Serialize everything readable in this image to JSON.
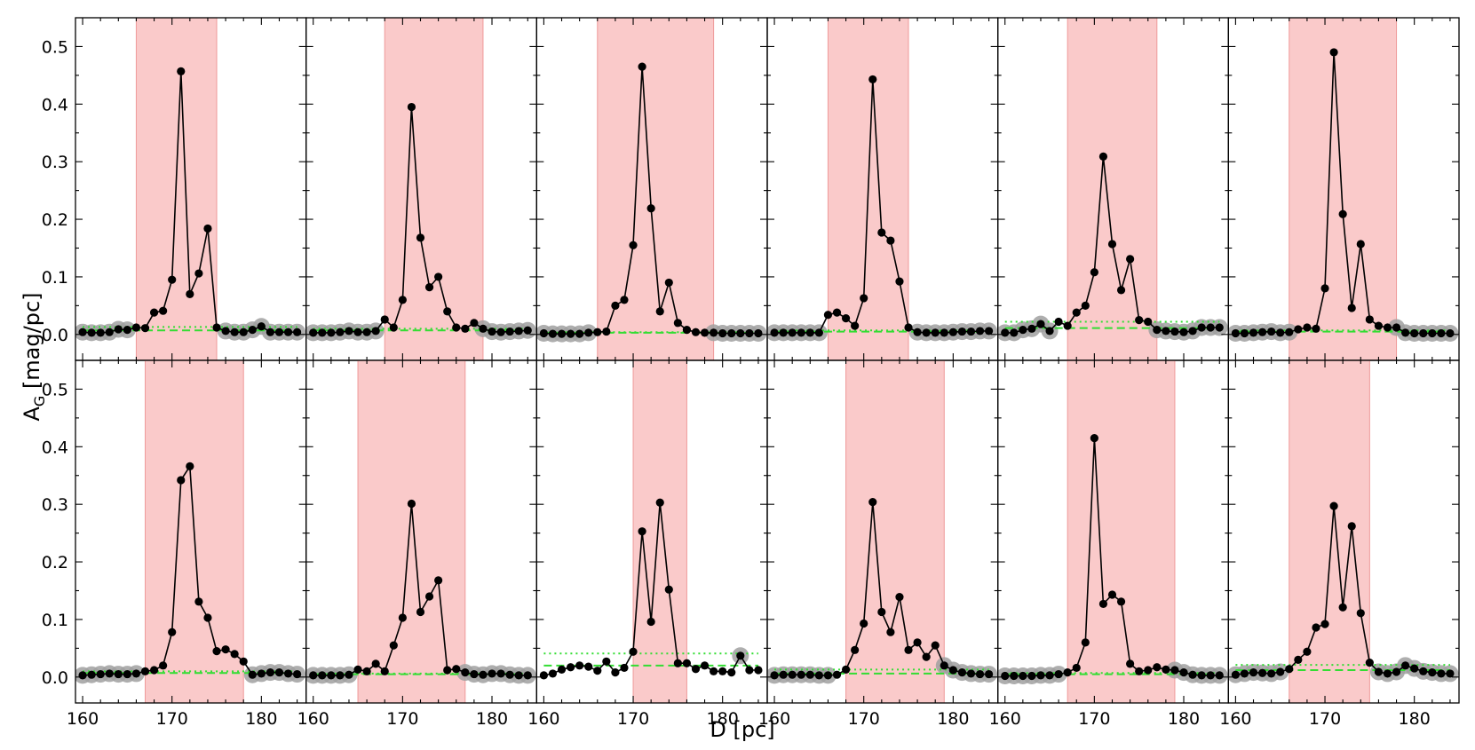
{
  "figure": {
    "xlabel": "D [pc]",
    "ylabel_main": "A",
    "ylabel_sub": "G",
    "ylabel_unit": " [mag/pc]"
  },
  "chart_data": {
    "type": "line",
    "layout": "2 rows x 6 columns, shared axes",
    "xlim": [
      159.2,
      185.0
    ],
    "ylim": [
      -0.045,
      0.55
    ],
    "xticks": [
      "160",
      "170",
      "180"
    ],
    "yticks": [
      "0.0",
      "0.1",
      "0.2",
      "0.3",
      "0.4",
      "0.5"
    ],
    "colors": {
      "band": "#f8b3b3",
      "line": "#000000",
      "marker": "#000000",
      "halo": "#a0a0a0",
      "fit_dashed": "#33dd33",
      "fit_dotted": "#33dd33"
    },
    "panels": [
      {
        "band": [
          166.0,
          175.0
        ],
        "dashed_y": 0.007,
        "dotted_y": 0.013,
        "x": [
          160,
          161,
          162,
          163,
          164,
          165,
          166,
          167,
          168,
          169,
          170,
          171,
          172,
          173,
          174,
          175,
          176,
          177,
          178,
          179,
          180,
          181,
          182,
          183,
          184
        ],
        "y": [
          0.004,
          0.003,
          0.003,
          0.004,
          0.009,
          0.008,
          0.012,
          0.011,
          0.038,
          0.041,
          0.095,
          0.457,
          0.07,
          0.106,
          0.184,
          0.012,
          0.006,
          0.004,
          0.004,
          0.008,
          0.014,
          0.004,
          0.004,
          0.004,
          0.004
        ],
        "halo": [
          1,
          1,
          1,
          1,
          1,
          1,
          0,
          0,
          0,
          0,
          0,
          0,
          0,
          0,
          0,
          0,
          1,
          1,
          1,
          1,
          1,
          1,
          1,
          1,
          1
        ]
      },
      {
        "band": [
          168.0,
          179.0
        ],
        "dashed_y": 0.007,
        "dotted_y": 0.01,
        "x": [
          160,
          161,
          162,
          163,
          164,
          165,
          166,
          167,
          168,
          169,
          170,
          171,
          172,
          173,
          174,
          175,
          176,
          177,
          178,
          179,
          180,
          181,
          182,
          183,
          184
        ],
        "y": [
          0.003,
          0.003,
          0.003,
          0.004,
          0.006,
          0.004,
          0.004,
          0.006,
          0.026,
          0.012,
          0.06,
          0.395,
          0.168,
          0.082,
          0.1,
          0.04,
          0.012,
          0.01,
          0.02,
          0.01,
          0.005,
          0.004,
          0.005,
          0.006,
          0.007
        ],
        "halo": [
          1,
          1,
          1,
          1,
          1,
          1,
          1,
          1,
          0,
          0,
          0,
          0,
          0,
          0,
          0,
          0,
          0,
          0,
          0,
          1,
          1,
          1,
          1,
          1,
          1
        ]
      },
      {
        "band": [
          166.0,
          179.0
        ],
        "dashed_y": 0.003,
        "dotted_y": 0.004,
        "x": [
          160,
          161,
          162,
          163,
          164,
          165,
          166,
          167,
          168,
          169,
          170,
          171,
          172,
          173,
          174,
          175,
          176,
          177,
          178,
          179,
          180,
          181,
          182,
          183,
          184
        ],
        "y": [
          0.002,
          0.001,
          0.001,
          0.001,
          0.001,
          0.003,
          0.004,
          0.005,
          0.05,
          0.06,
          0.155,
          0.465,
          0.219,
          0.04,
          0.09,
          0.02,
          0.008,
          0.004,
          0.003,
          0.003,
          0.002,
          0.002,
          0.002,
          0.002,
          0.002
        ],
        "halo": [
          1,
          1,
          1,
          1,
          1,
          1,
          0,
          0,
          0,
          0,
          0,
          0,
          0,
          0,
          0,
          0,
          0,
          0,
          0,
          1,
          1,
          1,
          1,
          1,
          1
        ]
      },
      {
        "band": [
          166.0,
          175.0
        ],
        "dashed_y": 0.005,
        "dotted_y": 0.007,
        "x": [
          160,
          161,
          162,
          163,
          164,
          165,
          166,
          167,
          168,
          169,
          170,
          171,
          172,
          173,
          174,
          175,
          176,
          177,
          178,
          179,
          180,
          181,
          182,
          183,
          184
        ],
        "y": [
          0.003,
          0.003,
          0.003,
          0.003,
          0.003,
          0.003,
          0.034,
          0.038,
          0.028,
          0.015,
          0.063,
          0.443,
          0.177,
          0.163,
          0.092,
          0.012,
          0.004,
          0.003,
          0.003,
          0.003,
          0.004,
          0.005,
          0.005,
          0.006,
          0.006
        ],
        "halo": [
          1,
          1,
          1,
          1,
          1,
          1,
          0,
          0,
          0,
          0,
          0,
          0,
          0,
          0,
          0,
          0,
          1,
          1,
          1,
          1,
          1,
          1,
          1,
          1,
          1
        ]
      },
      {
        "band": [
          167.0,
          177.0
        ],
        "dashed_y": 0.011,
        "dotted_y": 0.022,
        "x": [
          160,
          161,
          162,
          163,
          164,
          165,
          166,
          167,
          168,
          169,
          170,
          171,
          172,
          173,
          174,
          175,
          176,
          177,
          178,
          179,
          180,
          181,
          182,
          183,
          184
        ],
        "y": [
          0.003,
          0.003,
          0.008,
          0.01,
          0.018,
          0.006,
          0.022,
          0.015,
          0.038,
          0.05,
          0.108,
          0.309,
          0.157,
          0.077,
          0.131,
          0.025,
          0.022,
          0.008,
          0.006,
          0.005,
          0.004,
          0.006,
          0.012,
          0.012,
          0.012
        ],
        "halo": [
          1,
          1,
          1,
          1,
          1,
          1,
          0,
          0,
          0,
          0,
          0,
          0,
          0,
          0,
          0,
          0,
          0,
          1,
          1,
          1,
          1,
          1,
          1,
          1,
          1
        ]
      },
      {
        "band": [
          166.0,
          178.0
        ],
        "dashed_y": 0.005,
        "dotted_y": 0.007,
        "x": [
          160,
          161,
          162,
          163,
          164,
          165,
          166,
          167,
          168,
          169,
          170,
          171,
          172,
          173,
          174,
          175,
          176,
          177,
          178,
          179,
          180,
          181,
          182,
          183,
          184
        ],
        "y": [
          0.002,
          0.002,
          0.003,
          0.004,
          0.005,
          0.003,
          0.004,
          0.009,
          0.012,
          0.01,
          0.08,
          0.49,
          0.209,
          0.046,
          0.157,
          0.026,
          0.015,
          0.012,
          0.012,
          0.003,
          0.002,
          0.002,
          0.002,
          0.002,
          0.002
        ],
        "halo": [
          1,
          1,
          1,
          1,
          1,
          1,
          1,
          0,
          0,
          0,
          0,
          0,
          0,
          0,
          0,
          0,
          0,
          0,
          1,
          1,
          1,
          1,
          1,
          1,
          1
        ]
      },
      {
        "band": [
          167.0,
          178.0
        ],
        "dashed_y": 0.007,
        "dotted_y": 0.01,
        "x": [
          160,
          161,
          162,
          163,
          164,
          165,
          166,
          167,
          168,
          169,
          170,
          171,
          172,
          173,
          174,
          175,
          176,
          177,
          178,
          179,
          180,
          181,
          182,
          183,
          184
        ],
        "y": [
          0.003,
          0.004,
          0.005,
          0.006,
          0.005,
          0.005,
          0.006,
          0.01,
          0.012,
          0.02,
          0.078,
          0.342,
          0.366,
          0.131,
          0.103,
          0.045,
          0.048,
          0.04,
          0.027,
          0.004,
          0.006,
          0.008,
          0.008,
          0.006,
          0.005
        ],
        "halo": [
          1,
          1,
          1,
          1,
          1,
          1,
          1,
          0,
          0,
          0,
          0,
          0,
          0,
          0,
          0,
          0,
          0,
          0,
          0,
          1,
          1,
          1,
          1,
          1,
          1
        ]
      },
      {
        "band": [
          165.0,
          177.0
        ],
        "dashed_y": 0.005,
        "dotted_y": 0.006,
        "x": [
          160,
          161,
          162,
          163,
          164,
          165,
          166,
          167,
          168,
          169,
          170,
          171,
          172,
          173,
          174,
          175,
          176,
          177,
          178,
          179,
          180,
          181,
          182,
          183,
          184
        ],
        "y": [
          0.003,
          0.003,
          0.003,
          0.003,
          0.004,
          0.013,
          0.01,
          0.023,
          0.01,
          0.055,
          0.103,
          0.301,
          0.113,
          0.14,
          0.168,
          0.012,
          0.014,
          0.008,
          0.005,
          0.004,
          0.006,
          0.006,
          0.004,
          0.003,
          0.003
        ],
        "halo": [
          1,
          1,
          1,
          1,
          1,
          0,
          0,
          0,
          0,
          0,
          0,
          0,
          0,
          0,
          0,
          0,
          0,
          1,
          1,
          1,
          1,
          1,
          1,
          1,
          1
        ]
      },
      {
        "band": [
          170.0,
          176.0
        ],
        "dashed_y": 0.02,
        "dotted_y": 0.041,
        "x": [
          160,
          161,
          162,
          163,
          164,
          165,
          166,
          167,
          168,
          169,
          170,
          171,
          172,
          173,
          174,
          175,
          176,
          177,
          178,
          179,
          180,
          181,
          182,
          183,
          184
        ],
        "y": [
          0.003,
          0.006,
          0.013,
          0.017,
          0.02,
          0.018,
          0.011,
          0.027,
          0.008,
          0.016,
          0.044,
          0.253,
          0.096,
          0.303,
          0.152,
          0.024,
          0.024,
          0.014,
          0.02,
          0.01,
          0.01,
          0.008,
          0.037,
          0.012,
          0.012
        ],
        "halo": [
          0,
          0,
          0,
          0,
          0,
          0,
          0,
          0,
          0,
          0,
          0,
          0,
          0,
          0,
          0,
          0,
          0,
          0,
          0,
          0,
          0,
          0,
          1,
          0,
          0
        ]
      },
      {
        "band": [
          168.0,
          179.0
        ],
        "dashed_y": 0.006,
        "dotted_y": 0.013,
        "x": [
          160,
          161,
          162,
          163,
          164,
          165,
          166,
          167,
          168,
          169,
          170,
          171,
          172,
          173,
          174,
          175,
          176,
          177,
          178,
          179,
          180,
          181,
          182,
          183,
          184
        ],
        "y": [
          0.003,
          0.004,
          0.004,
          0.004,
          0.004,
          0.003,
          0.003,
          0.004,
          0.013,
          0.047,
          0.093,
          0.304,
          0.113,
          0.078,
          0.139,
          0.047,
          0.06,
          0.035,
          0.055,
          0.02,
          0.012,
          0.008,
          0.006,
          0.005,
          0.005
        ],
        "halo": [
          1,
          1,
          1,
          1,
          1,
          1,
          1,
          0,
          0,
          0,
          0,
          0,
          0,
          0,
          0,
          0,
          0,
          0,
          0,
          1,
          1,
          1,
          1,
          1,
          1
        ]
      },
      {
        "band": [
          167.0,
          179.0
        ],
        "dashed_y": 0.005,
        "dotted_y": 0.007,
        "x": [
          160,
          161,
          162,
          163,
          164,
          165,
          166,
          167,
          168,
          169,
          170,
          171,
          172,
          173,
          174,
          175,
          176,
          177,
          178,
          179,
          180,
          181,
          182,
          183,
          184
        ],
        "y": [
          0.002,
          0.002,
          0.002,
          0.002,
          0.003,
          0.003,
          0.005,
          0.008,
          0.016,
          0.06,
          0.415,
          0.127,
          0.143,
          0.131,
          0.023,
          0.01,
          0.012,
          0.017,
          0.013,
          0.012,
          0.008,
          0.004,
          0.003,
          0.003,
          0.003
        ],
        "halo": [
          1,
          1,
          1,
          1,
          1,
          1,
          1,
          0,
          0,
          0,
          0,
          0,
          0,
          0,
          0,
          0,
          0,
          0,
          0,
          1,
          1,
          1,
          1,
          1,
          1
        ]
      },
      {
        "band": [
          166.0,
          175.0
        ],
        "dashed_y": 0.012,
        "dotted_y": 0.021,
        "x": [
          160,
          161,
          162,
          163,
          164,
          165,
          166,
          167,
          168,
          169,
          170,
          171,
          172,
          173,
          174,
          175,
          176,
          177,
          178,
          179,
          180,
          181,
          182,
          183,
          184
        ],
        "y": [
          0.004,
          0.006,
          0.008,
          0.007,
          0.006,
          0.009,
          0.014,
          0.03,
          0.044,
          0.086,
          0.092,
          0.297,
          0.121,
          0.262,
          0.111,
          0.025,
          0.009,
          0.006,
          0.009,
          0.02,
          0.015,
          0.01,
          0.008,
          0.006,
          0.006
        ],
        "halo": [
          1,
          1,
          1,
          1,
          1,
          1,
          0,
          0,
          0,
          0,
          0,
          0,
          0,
          0,
          0,
          0,
          1,
          1,
          1,
          1,
          1,
          1,
          1,
          1,
          1
        ]
      }
    ]
  }
}
